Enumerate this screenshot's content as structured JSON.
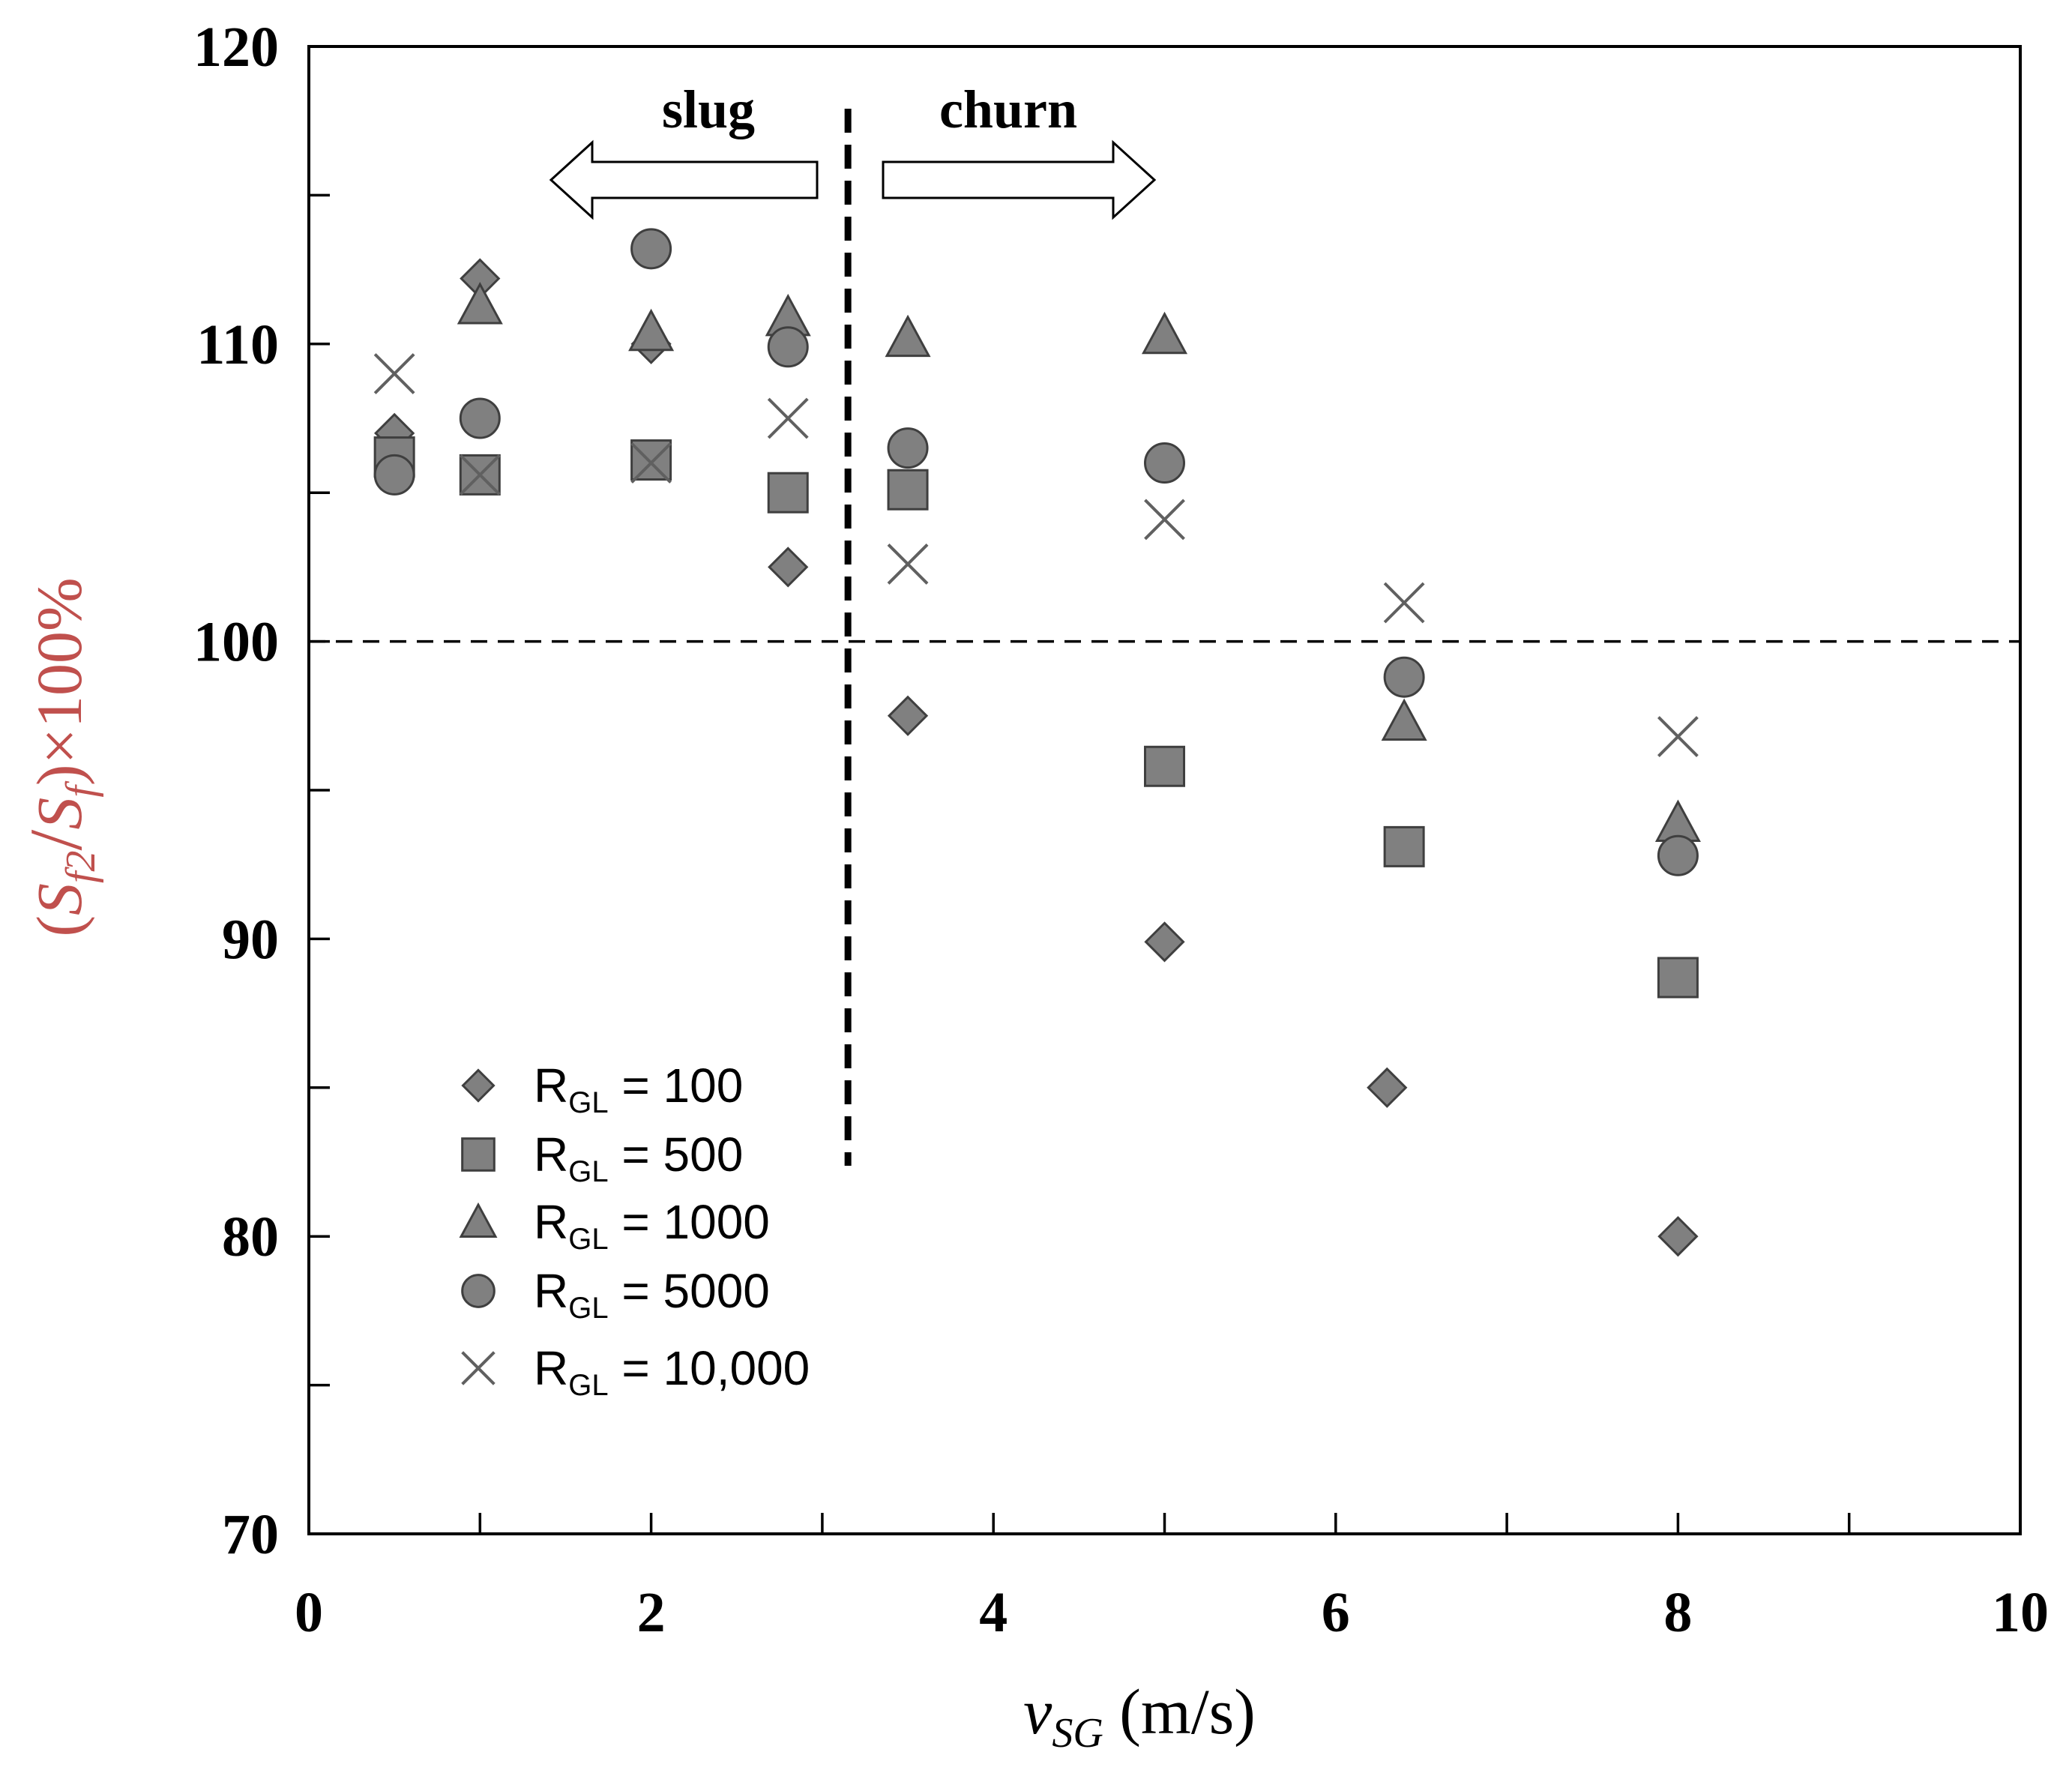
{
  "chart_data": {
    "type": "scatter",
    "xlabel": {
      "main": "v",
      "sub": "SG",
      "unit": " (m/s)"
    },
    "ylabel": {
      "open": "(",
      "s1": "S",
      "s1_sub": "f2",
      "slash": "/",
      "s2": "S",
      "s2_sub": "f",
      "close": ")",
      "tail": "×100%"
    },
    "xlim": [
      0,
      10
    ],
    "ylim": [
      70,
      120
    ],
    "x_ticks": [
      "0",
      "2",
      "4",
      "6",
      "8",
      "10"
    ],
    "x_tick_values": [
      0,
      2,
      4,
      6,
      8,
      10
    ],
    "y_ticks": [
      "70",
      "80",
      "90",
      "100",
      "110",
      "120"
    ],
    "y_tick_values": [
      70,
      80,
      90,
      100,
      110,
      120
    ],
    "x_minor_step": 1,
    "y_minor_step": 5,
    "reference_line_y": 100,
    "regime_boundary_x": 3.15,
    "regions": {
      "left": "slug",
      "right": "churn"
    },
    "legend_position": "lower-left",
    "series": [
      {
        "name": "R_GL = 100",
        "label_main": "R",
        "label_sub": "GL",
        "label_rest": " = 100",
        "marker": "diamond",
        "x": [
          0.5,
          1.0,
          2.0,
          2.8,
          3.5,
          5.0,
          6.3,
          8.0
        ],
        "y": [
          107.0,
          112.2,
          110.0,
          102.5,
          97.5,
          89.9,
          85.0,
          80.0
        ]
      },
      {
        "name": "R_GL = 500",
        "label_main": "R",
        "label_sub": "GL",
        "label_rest": " = 500",
        "marker": "square",
        "x": [
          0.5,
          1.0,
          2.0,
          2.8,
          3.5,
          5.0,
          6.4,
          8.0
        ],
        "y": [
          106.2,
          105.6,
          106.1,
          105.0,
          105.1,
          95.8,
          93.1,
          88.7
        ]
      },
      {
        "name": "R_GL = 1000",
        "label_main": "R",
        "label_sub": "GL",
        "label_rest": " = 1000",
        "marker": "triangle",
        "x": [
          1.0,
          2.0,
          2.8,
          3.5,
          5.0,
          6.4,
          8.0
        ],
        "y": [
          111.3,
          110.4,
          110.9,
          110.2,
          110.3,
          97.3,
          93.9
        ]
      },
      {
        "name": "R_GL = 5000",
        "label_main": "R",
        "label_sub": "GL",
        "label_rest": " = 5000",
        "marker": "circle",
        "x": [
          0.5,
          1.0,
          2.0,
          2.8,
          3.5,
          5.0,
          6.4,
          8.0
        ],
        "y": [
          105.6,
          107.5,
          113.2,
          109.9,
          106.5,
          106.0,
          98.8,
          92.8
        ]
      },
      {
        "name": "R_GL = 10,000",
        "label_main": "R",
        "label_sub": "GL",
        "label_rest": " = 10,000",
        "marker": "cross",
        "x": [
          0.5,
          1.0,
          2.0,
          2.8,
          3.5,
          5.0,
          6.4,
          8.0
        ],
        "y": [
          109.0,
          105.6,
          106.0,
          107.5,
          102.6,
          104.1,
          101.3,
          96.8
        ]
      }
    ],
    "colors": {
      "marker_fill": "#808080",
      "marker_stroke": "#3f3f3f",
      "cross": "#606060",
      "ylabel": "#c0504d"
    }
  }
}
